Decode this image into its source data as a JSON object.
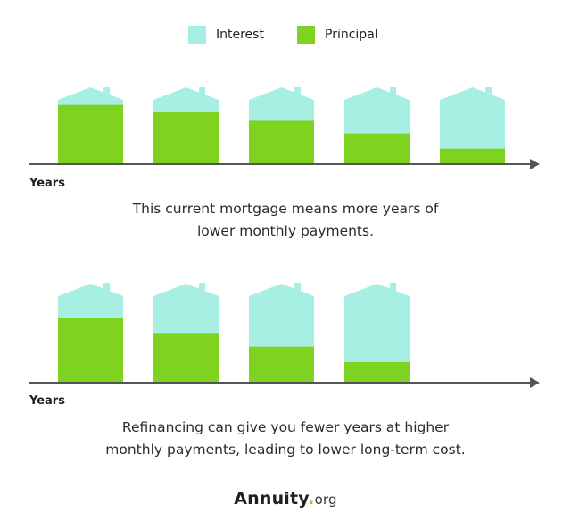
{
  "legend": {
    "interest_label": "Interest",
    "principal_label": "Principal"
  },
  "colors": {
    "interest": "#a8efe3",
    "principal": "#7ed321",
    "axis": "#555555"
  },
  "panels": [
    {
      "years_label": "Years",
      "houses": [
        {
          "principal_fraction": 0.92
        },
        {
          "principal_fraction": 0.81
        },
        {
          "principal_fraction": 0.67
        },
        {
          "principal_fraction": 0.47
        },
        {
          "principal_fraction": 0.23
        }
      ],
      "caption_lines": [
        "This current mortgage means more years of",
        "lower monthly payments."
      ]
    },
    {
      "years_label": "Years",
      "houses": [
        {
          "principal_fraction": 0.75
        },
        {
          "principal_fraction": 0.57
        },
        {
          "principal_fraction": 0.41
        },
        {
          "principal_fraction": 0.23
        }
      ],
      "caption_lines": [
        "Refinancing can give you fewer years at higher",
        "monthly payments, leading to lower long-term cost."
      ]
    }
  ],
  "brand": {
    "name": "Annuity",
    "dot": ".",
    "tld": "org"
  }
}
